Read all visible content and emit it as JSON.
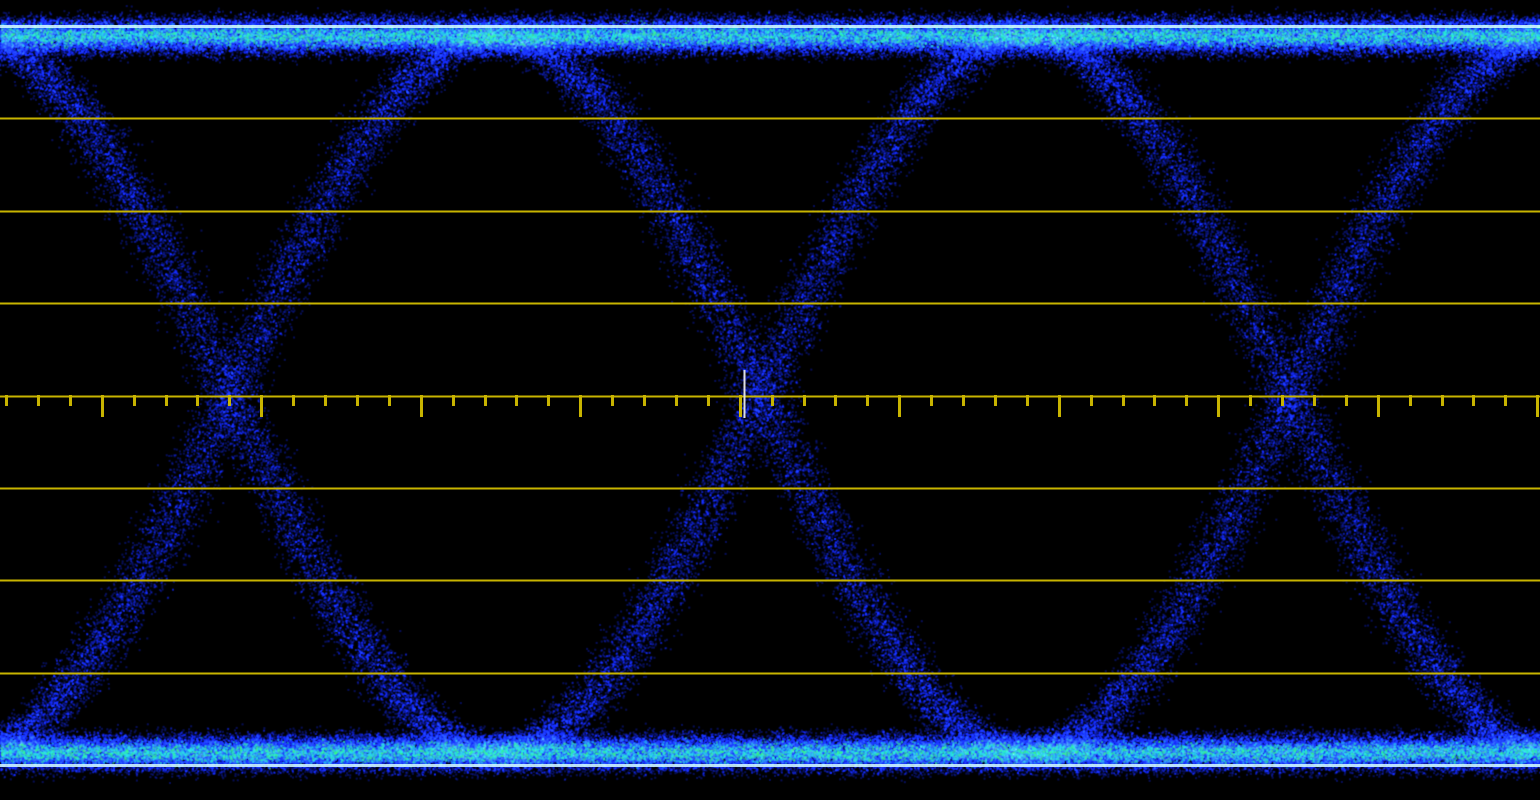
{
  "chart_data": {
    "type": "scatter",
    "grid": true,
    "unit_intervals_shown": 3,
    "vertical_divisions": 8,
    "horizontal_ticks_per_division": 5,
    "logic_levels": [
      "low",
      "high"
    ],
    "colors": {
      "background": "#000000",
      "graticule": "#c8b400",
      "trace_low_density": "#1020ff",
      "trace_mid_density": "#2a7dff",
      "trace_high_density": "#30ffd0",
      "level_line": "#d8ffff"
    }
  }
}
